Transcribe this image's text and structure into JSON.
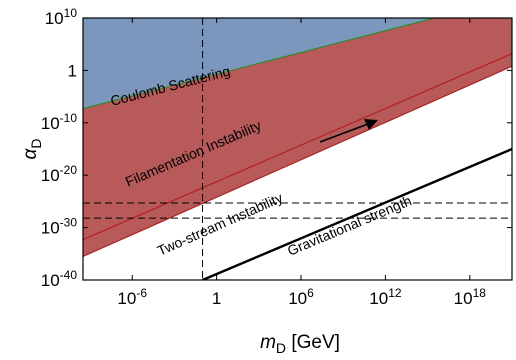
{
  "chart_data": {
    "type": "area",
    "xlabel": "m_D [GeV]",
    "xlabel_parts": {
      "var": "m",
      "sub": "D",
      "unit": " [GeV]"
    },
    "ylabel": "α_D",
    "ylabel_parts": {
      "var": "α",
      "sub": "D"
    },
    "x_scale": "log",
    "y_scale": "log",
    "xlim_log10": [
      -9.5,
      21
    ],
    "ylim_log10": [
      -40,
      10
    ],
    "x_ticks": [
      {
        "exp": -6,
        "base": "10",
        "sup": "-6"
      },
      {
        "exp": 0,
        "base": "1",
        "sup": ""
      },
      {
        "exp": 6,
        "base": "10",
        "sup": "6"
      },
      {
        "exp": 12,
        "base": "10",
        "sup": "12"
      },
      {
        "exp": 18,
        "base": "10",
        "sup": "18"
      }
    ],
    "y_ticks": [
      {
        "exp": 10,
        "base": "10",
        "sup": "10"
      },
      {
        "exp": 0,
        "base": "1",
        "sup": ""
      },
      {
        "exp": -10,
        "base": "10",
        "sup": "-10"
      },
      {
        "exp": -20,
        "base": "10",
        "sup": "-20"
      },
      {
        "exp": -30,
        "base": "10",
        "sup": "-30"
      },
      {
        "exp": -40,
        "base": "10",
        "sup": "-40"
      }
    ],
    "regions": [
      {
        "name": "Coulomb Scattering",
        "color": "#7b97bd",
        "edge": "#2e8b2e",
        "boundary_log10": [
          [
            -9.5,
            -7.3
          ],
          [
            15.5,
            10
          ]
        ]
      },
      {
        "name": "Filamentation Instability",
        "color": "#4f6e46",
        "edge": "#b22222",
        "boundary_log10": [
          [
            -9.5,
            -32.3
          ],
          [
            21,
            3.2
          ]
        ]
      },
      {
        "name": "Two-stream Instability",
        "color": "#b85a5a",
        "edge": "#b22222",
        "boundary_log10": [
          [
            -9.5,
            -35.5
          ],
          [
            21,
            0.8
          ]
        ]
      }
    ],
    "lines": [
      {
        "name": "Gravitational strength",
        "color": "#000000",
        "points_log10": [
          [
            -1,
            -40
          ],
          [
            21,
            -15
          ]
        ]
      }
    ],
    "reference_lines": {
      "vertical_x_log10": -1,
      "horizontal_y_log10": [
        -25.3,
        -28.2
      ]
    },
    "annotations": [
      {
        "text": "Coulomb Scattering"
      },
      {
        "text": "Filamentation Instability"
      },
      {
        "text": "Two-stream Instability"
      },
      {
        "text": "Gravitational strength"
      }
    ],
    "grid": false,
    "colors": {
      "coulomb": "#7b97bd",
      "filamentation": "#4f6e46",
      "two_stream": "#b85a5a",
      "green_edge": "#2e8b2e",
      "red_edge": "#b22222"
    }
  }
}
